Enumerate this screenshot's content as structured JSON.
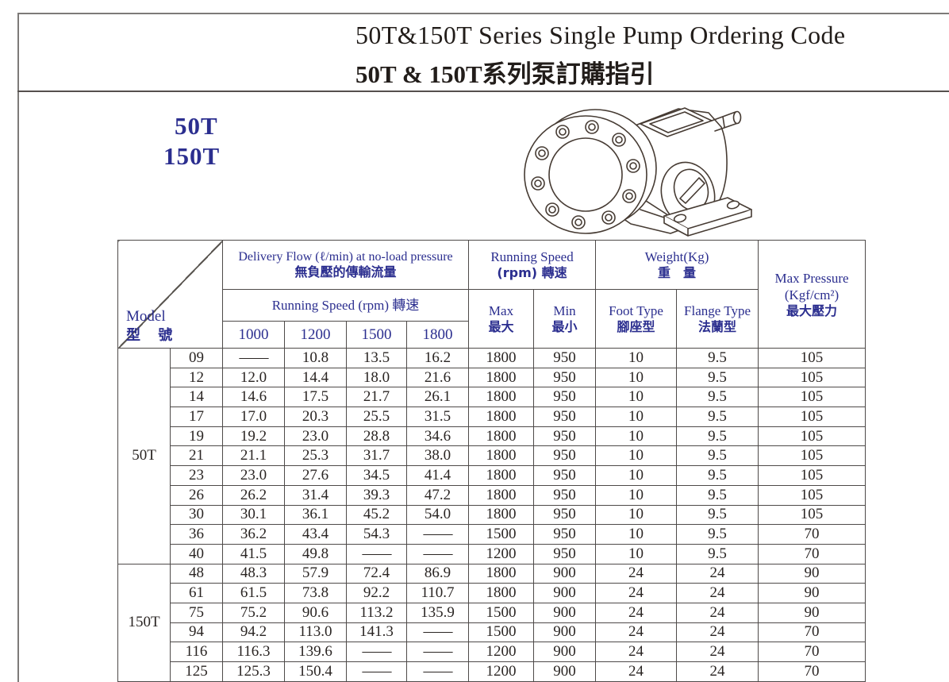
{
  "page": {
    "title_en": "50T&150T Series Single Pump Ordering Code",
    "title_zh": "50T & 150T系列泵訂購指引",
    "series_label_1": "50T",
    "series_label_2": "150T"
  },
  "icons": {
    "pump_drawing": "gear-pump-isometric-line-drawing"
  },
  "colors": {
    "header_text": "#2b2e8f",
    "title_text": "#221d1a",
    "data_text": "#2a2523",
    "table_border": "#4e4a49",
    "frame_line": "#7d7a78"
  },
  "table": {
    "header": {
      "model": {
        "line1": "Model",
        "line2": "型 號"
      },
      "delivery_flow": {
        "line1": "Delivery Flow (ℓ/min) at no-load pressure",
        "line2": "無負壓的傳輸流量"
      },
      "flow_speed_label": "Running Speed (rpm) 轉速",
      "speed_cols": [
        "1000",
        "1200",
        "1500",
        "1800"
      ],
      "speed_group": {
        "line1": "Running Speed",
        "line2": "(rpm) 轉速"
      },
      "max": {
        "line1": "Max",
        "line2": "最大"
      },
      "min": {
        "line1": "Min",
        "line2": "最小"
      },
      "weight": {
        "line1": "Weight(Kg)",
        "line2": "重　量"
      },
      "foot": {
        "line1": "Foot Type",
        "line2": "腳座型"
      },
      "flange": {
        "line1": "Flange Type",
        "line2": "法蘭型"
      },
      "max_pressure": {
        "line1": "Max Pressure",
        "line2": "(Kgf/cm²)",
        "line3": "最大壓力"
      }
    },
    "groups": [
      {
        "label": "50T",
        "rows": [
          [
            "09",
            "——",
            "10.8",
            "13.5",
            "16.2",
            "1800",
            "950",
            "10",
            "9.5",
            "105"
          ],
          [
            "12",
            "12.0",
            "14.4",
            "18.0",
            "21.6",
            "1800",
            "950",
            "10",
            "9.5",
            "105"
          ],
          [
            "14",
            "14.6",
            "17.5",
            "21.7",
            "26.1",
            "1800",
            "950",
            "10",
            "9.5",
            "105"
          ],
          [
            "17",
            "17.0",
            "20.3",
            "25.5",
            "31.5",
            "1800",
            "950",
            "10",
            "9.5",
            "105"
          ],
          [
            "19",
            "19.2",
            "23.0",
            "28.8",
            "34.6",
            "1800",
            "950",
            "10",
            "9.5",
            "105"
          ],
          [
            "21",
            "21.1",
            "25.3",
            "31.7",
            "38.0",
            "1800",
            "950",
            "10",
            "9.5",
            "105"
          ],
          [
            "23",
            "23.0",
            "27.6",
            "34.5",
            "41.4",
            "1800",
            "950",
            "10",
            "9.5",
            "105"
          ],
          [
            "26",
            "26.2",
            "31.4",
            "39.3",
            "47.2",
            "1800",
            "950",
            "10",
            "9.5",
            "105"
          ],
          [
            "30",
            "30.1",
            "36.1",
            "45.2",
            "54.0",
            "1800",
            "950",
            "10",
            "9.5",
            "105"
          ],
          [
            "36",
            "36.2",
            "43.4",
            "54.3",
            "——",
            "1500",
            "950",
            "10",
            "9.5",
            "70"
          ],
          [
            "40",
            "41.5",
            "49.8",
            "——",
            "——",
            "1200",
            "950",
            "10",
            "9.5",
            "70"
          ]
        ]
      },
      {
        "label": "150T",
        "rows": [
          [
            "48",
            "48.3",
            "57.9",
            "72.4",
            "86.9",
            "1800",
            "900",
            "24",
            "24",
            "90"
          ],
          [
            "61",
            "61.5",
            "73.8",
            "92.2",
            "110.7",
            "1800",
            "900",
            "24",
            "24",
            "90"
          ],
          [
            "75",
            "75.2",
            "90.6",
            "113.2",
            "135.9",
            "1500",
            "900",
            "24",
            "24",
            "90"
          ],
          [
            "94",
            "94.2",
            "113.0",
            "141.3",
            "——",
            "1500",
            "900",
            "24",
            "24",
            "70"
          ],
          [
            "116",
            "116.3",
            "139.6",
            "——",
            "——",
            "1200",
            "900",
            "24",
            "24",
            "70"
          ],
          [
            "125",
            "125.3",
            "150.4",
            "——",
            "——",
            "1200",
            "900",
            "24",
            "24",
            "70"
          ]
        ]
      }
    ]
  }
}
